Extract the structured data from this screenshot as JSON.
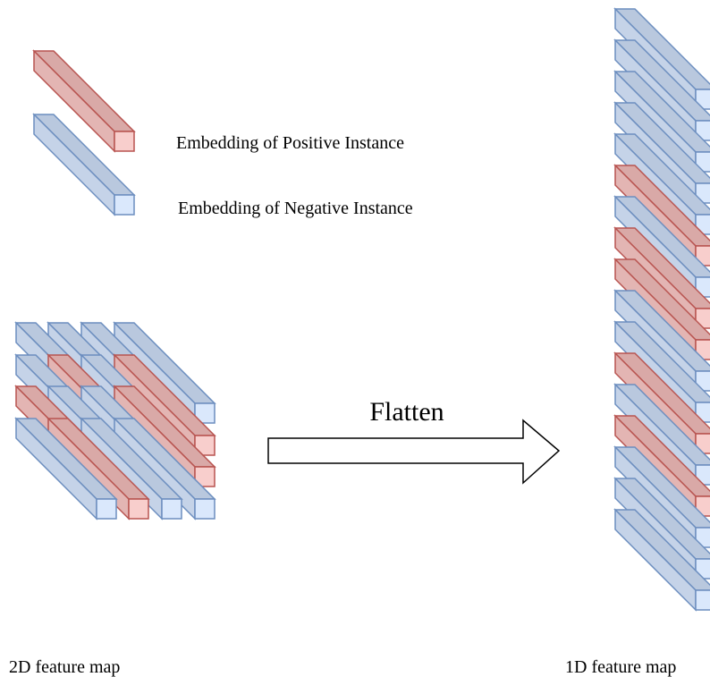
{
  "legend": {
    "positive": "Embedding of Positive Instance",
    "negative": "Embedding of Negative Instance"
  },
  "arrow_label": "Flatten",
  "captions": {
    "left": "2D feature map",
    "right": "1D feature map"
  }
}
